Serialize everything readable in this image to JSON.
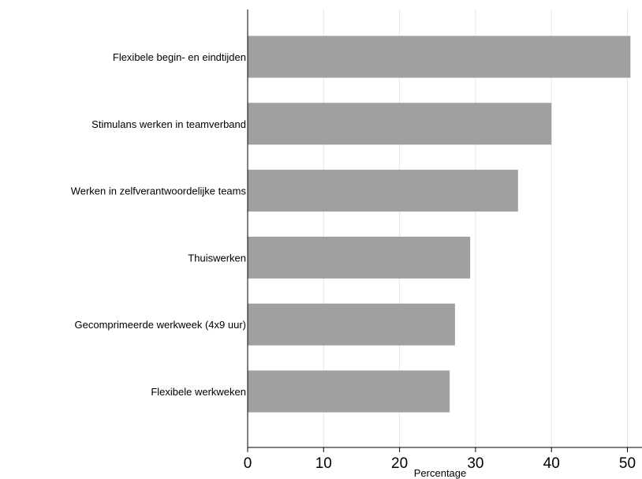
{
  "chart_data": {
    "type": "bar",
    "orientation": "horizontal",
    "categories": [
      "Flexibele begin- en eindtijden",
      "Stimulans werken in teamverband",
      "Werken in zelfverantwoordelijke teams",
      "Thuiswerken",
      "Gecomprimeerde werkweek (4x9 uur)",
      "Flexibele werkweken"
    ],
    "values": [
      50.4,
      40.0,
      35.6,
      29.3,
      27.3,
      26.6
    ],
    "xlabel": "Percentage",
    "xlim": [
      0,
      52
    ],
    "ticks": [
      "0",
      "10",
      "20",
      "30",
      "40",
      "50"
    ],
    "grid": "vertical lines at ticks",
    "bar_color": "#a0a0a0"
  }
}
